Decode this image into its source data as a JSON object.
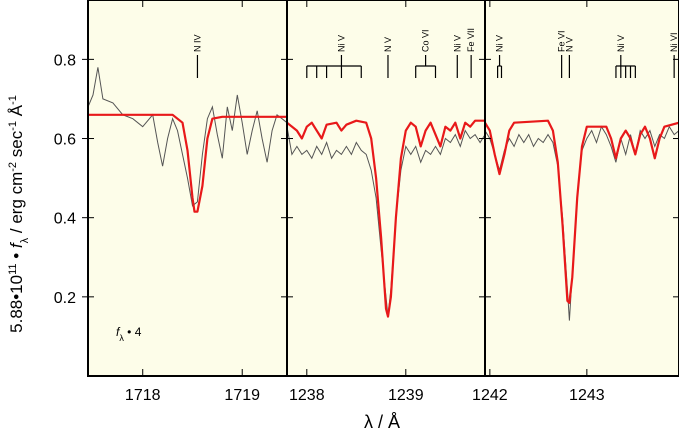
{
  "chart_data": {
    "type": "line",
    "ylabel": {
      "prefix": "5.88•10",
      "prefix_sup": "11",
      "mid": " • ",
      "f": "f",
      "f_sub": "λ",
      "units_a": " / erg cm",
      "units_sup1": "-2",
      "units_b": " sec",
      "units_sup2": "-1",
      "units_c": " Å",
      "units_sup3": "-1"
    },
    "xlabel": "λ / Å",
    "ylim": [
      0.0,
      0.95
    ],
    "yticks": [
      0.2,
      0.4,
      0.6,
      0.8
    ],
    "ytick_labels": [
      "0.2",
      "0.4",
      "0.6",
      "0.8"
    ],
    "annotation": {
      "f": "f",
      "sub": "λ",
      "rest": " • 4"
    },
    "panels": [
      {
        "id": "panel-1",
        "xlim": [
          1717.45,
          1719.45
        ],
        "xticks": [
          1718,
          1719
        ],
        "xtick_labels": [
          "1718",
          "1719"
        ],
        "lines": [
          {
            "label": "N IV",
            "x": 1718.55
          }
        ],
        "model": [
          [
            1717.45,
            0.66
          ],
          [
            1718.3,
            0.66
          ],
          [
            1718.4,
            0.64
          ],
          [
            1718.45,
            0.57
          ],
          [
            1718.5,
            0.45
          ],
          [
            1718.52,
            0.415
          ],
          [
            1718.55,
            0.415
          ],
          [
            1718.6,
            0.48
          ],
          [
            1718.65,
            0.6
          ],
          [
            1718.7,
            0.65
          ],
          [
            1718.8,
            0.655
          ],
          [
            1719.45,
            0.655
          ]
        ],
        "observed": [
          [
            1717.45,
            0.68
          ],
          [
            1717.5,
            0.71
          ],
          [
            1717.55,
            0.78
          ],
          [
            1717.6,
            0.7
          ],
          [
            1717.7,
            0.69
          ],
          [
            1717.8,
            0.66
          ],
          [
            1717.9,
            0.65
          ],
          [
            1718.0,
            0.63
          ],
          [
            1718.1,
            0.66
          ],
          [
            1718.15,
            0.59
          ],
          [
            1718.2,
            0.53
          ],
          [
            1718.25,
            0.6
          ],
          [
            1718.3,
            0.65
          ],
          [
            1718.35,
            0.62
          ],
          [
            1718.4,
            0.56
          ],
          [
            1718.45,
            0.5
          ],
          [
            1718.5,
            0.43
          ],
          [
            1718.55,
            0.44
          ],
          [
            1718.6,
            0.56
          ],
          [
            1718.65,
            0.65
          ],
          [
            1718.7,
            0.68
          ],
          [
            1718.75,
            0.61
          ],
          [
            1718.8,
            0.55
          ],
          [
            1718.85,
            0.68
          ],
          [
            1718.9,
            0.62
          ],
          [
            1718.95,
            0.71
          ],
          [
            1719.0,
            0.64
          ],
          [
            1719.05,
            0.56
          ],
          [
            1719.1,
            0.62
          ],
          [
            1719.15,
            0.67
          ],
          [
            1719.2,
            0.6
          ],
          [
            1719.25,
            0.54
          ],
          [
            1719.3,
            0.62
          ],
          [
            1719.35,
            0.66
          ],
          [
            1719.4,
            0.65
          ],
          [
            1719.45,
            0.64
          ]
        ]
      },
      {
        "id": "panel-2",
        "xlim": [
          1237.8,
          1239.8
        ],
        "xticks": [
          1238,
          1239
        ],
        "xtick_labels": [
          "1238",
          "1239"
        ],
        "lines": [
          {
            "label": "Ni V",
            "x": 1238.35,
            "sub": [
              1238.0,
              1238.1,
              1238.2,
              1238.35,
              1238.55
            ]
          },
          {
            "label": "N V",
            "x": 1238.82
          },
          {
            "label": "Co VI",
            "x": 1239.2,
            "sub": [
              1239.1,
              1239.3
            ]
          },
          {
            "label": "Ni V",
            "x": 1239.52
          },
          {
            "label": "Fe VII",
            "x": 1239.66
          }
        ],
        "model": [
          [
            1237.8,
            0.64
          ],
          [
            1237.9,
            0.62
          ],
          [
            1237.95,
            0.6
          ],
          [
            1238.0,
            0.63
          ],
          [
            1238.05,
            0.64
          ],
          [
            1238.1,
            0.62
          ],
          [
            1238.15,
            0.6
          ],
          [
            1238.2,
            0.635
          ],
          [
            1238.3,
            0.64
          ],
          [
            1238.35,
            0.62
          ],
          [
            1238.4,
            0.635
          ],
          [
            1238.5,
            0.645
          ],
          [
            1238.6,
            0.64
          ],
          [
            1238.65,
            0.6
          ],
          [
            1238.7,
            0.5
          ],
          [
            1238.75,
            0.35
          ],
          [
            1238.8,
            0.17
          ],
          [
            1238.82,
            0.15
          ],
          [
            1238.85,
            0.2
          ],
          [
            1238.9,
            0.4
          ],
          [
            1238.95,
            0.55
          ],
          [
            1239.0,
            0.62
          ],
          [
            1239.05,
            0.64
          ],
          [
            1239.1,
            0.63
          ],
          [
            1239.15,
            0.58
          ],
          [
            1239.2,
            0.62
          ],
          [
            1239.25,
            0.64
          ],
          [
            1239.3,
            0.61
          ],
          [
            1239.35,
            0.58
          ],
          [
            1239.4,
            0.63
          ],
          [
            1239.45,
            0.62
          ],
          [
            1239.5,
            0.64
          ],
          [
            1239.55,
            0.6
          ],
          [
            1239.6,
            0.64
          ],
          [
            1239.65,
            0.63
          ],
          [
            1239.7,
            0.645
          ],
          [
            1239.8,
            0.645
          ]
        ],
        "observed": [
          [
            1237.8,
            0.63
          ],
          [
            1237.85,
            0.56
          ],
          [
            1237.9,
            0.58
          ],
          [
            1237.95,
            0.56
          ],
          [
            1238.0,
            0.57
          ],
          [
            1238.05,
            0.55
          ],
          [
            1238.1,
            0.58
          ],
          [
            1238.15,
            0.56
          ],
          [
            1238.2,
            0.59
          ],
          [
            1238.25,
            0.55
          ],
          [
            1238.3,
            0.57
          ],
          [
            1238.35,
            0.56
          ],
          [
            1238.4,
            0.58
          ],
          [
            1238.45,
            0.56
          ],
          [
            1238.5,
            0.59
          ],
          [
            1238.55,
            0.57
          ],
          [
            1238.6,
            0.56
          ],
          [
            1238.65,
            0.52
          ],
          [
            1238.7,
            0.45
          ],
          [
            1238.75,
            0.32
          ],
          [
            1238.8,
            0.2
          ],
          [
            1238.82,
            0.15
          ],
          [
            1238.85,
            0.22
          ],
          [
            1238.9,
            0.4
          ],
          [
            1238.95,
            0.52
          ],
          [
            1239.0,
            0.58
          ],
          [
            1239.05,
            0.56
          ],
          [
            1239.1,
            0.58
          ],
          [
            1239.15,
            0.54
          ],
          [
            1239.2,
            0.57
          ],
          [
            1239.25,
            0.56
          ],
          [
            1239.3,
            0.58
          ],
          [
            1239.35,
            0.56
          ],
          [
            1239.4,
            0.6
          ],
          [
            1239.45,
            0.59
          ],
          [
            1239.5,
            0.61
          ],
          [
            1239.55,
            0.58
          ],
          [
            1239.6,
            0.62
          ],
          [
            1239.65,
            0.6
          ],
          [
            1239.7,
            0.61
          ],
          [
            1239.75,
            0.59
          ],
          [
            1239.8,
            0.61
          ]
        ]
      },
      {
        "id": "panel-3",
        "xlim": [
          1241.95,
          1243.95
        ],
        "xticks": [
          1242,
          1243
        ],
        "xtick_labels": [
          "1242",
          "1243"
        ],
        "lines": [
          {
            "label": "Ni V",
            "x": 1242.1,
            "sub": [
              1242.08,
              1242.12
            ]
          },
          {
            "label": "Fe VI",
            "x": 1242.74
          },
          {
            "label": "N V",
            "x": 1242.82
          },
          {
            "label": "Ni V",
            "x": 1243.35,
            "sub": [
              1243.3,
              1243.35,
              1243.4,
              1243.45,
              1243.5
            ]
          },
          {
            "label": "Ni VI",
            "x": 1243.9
          }
        ],
        "model": [
          [
            1241.95,
            0.64
          ],
          [
            1242.0,
            0.62
          ],
          [
            1242.05,
            0.56
          ],
          [
            1242.1,
            0.51
          ],
          [
            1242.15,
            0.56
          ],
          [
            1242.2,
            0.62
          ],
          [
            1242.25,
            0.64
          ],
          [
            1242.6,
            0.645
          ],
          [
            1242.65,
            0.62
          ],
          [
            1242.7,
            0.54
          ],
          [
            1242.75,
            0.38
          ],
          [
            1242.8,
            0.19
          ],
          [
            1242.82,
            0.185
          ],
          [
            1242.85,
            0.25
          ],
          [
            1242.9,
            0.45
          ],
          [
            1242.95,
            0.58
          ],
          [
            1243.0,
            0.63
          ],
          [
            1243.2,
            0.63
          ],
          [
            1243.25,
            0.6
          ],
          [
            1243.3,
            0.55
          ],
          [
            1243.35,
            0.6
          ],
          [
            1243.4,
            0.62
          ],
          [
            1243.45,
            0.6
          ],
          [
            1243.5,
            0.56
          ],
          [
            1243.55,
            0.61
          ],
          [
            1243.6,
            0.63
          ],
          [
            1243.65,
            0.6
          ],
          [
            1243.7,
            0.55
          ],
          [
            1243.75,
            0.6
          ],
          [
            1243.8,
            0.63
          ],
          [
            1243.95,
            0.64
          ]
        ],
        "observed": [
          [
            1241.95,
            0.62
          ],
          [
            1242.0,
            0.6
          ],
          [
            1242.05,
            0.56
          ],
          [
            1242.1,
            0.52
          ],
          [
            1242.15,
            0.57
          ],
          [
            1242.2,
            0.6
          ],
          [
            1242.25,
            0.58
          ],
          [
            1242.3,
            0.61
          ],
          [
            1242.35,
            0.59
          ],
          [
            1242.4,
            0.61
          ],
          [
            1242.45,
            0.58
          ],
          [
            1242.5,
            0.6
          ],
          [
            1242.55,
            0.59
          ],
          [
            1242.6,
            0.61
          ],
          [
            1242.65,
            0.59
          ],
          [
            1242.7,
            0.53
          ],
          [
            1242.75,
            0.4
          ],
          [
            1242.8,
            0.22
          ],
          [
            1242.82,
            0.14
          ],
          [
            1242.85,
            0.26
          ],
          [
            1242.9,
            0.45
          ],
          [
            1242.95,
            0.57
          ],
          [
            1243.0,
            0.6
          ],
          [
            1243.05,
            0.62
          ],
          [
            1243.1,
            0.59
          ],
          [
            1243.15,
            0.63
          ],
          [
            1243.2,
            0.61
          ],
          [
            1243.25,
            0.58
          ],
          [
            1243.3,
            0.54
          ],
          [
            1243.35,
            0.6
          ],
          [
            1243.4,
            0.56
          ],
          [
            1243.45,
            0.61
          ],
          [
            1243.5,
            0.56
          ],
          [
            1243.55,
            0.62
          ],
          [
            1243.6,
            0.6
          ],
          [
            1243.65,
            0.62
          ],
          [
            1243.7,
            0.58
          ],
          [
            1243.75,
            0.61
          ],
          [
            1243.8,
            0.6
          ],
          [
            1243.85,
            0.63
          ],
          [
            1243.9,
            0.61
          ],
          [
            1243.95,
            0.62
          ]
        ]
      }
    ],
    "colors": {
      "panel_bg": "#fdfde9",
      "model": "#e8191a",
      "observed": "#555555",
      "axis": "#000000"
    }
  }
}
